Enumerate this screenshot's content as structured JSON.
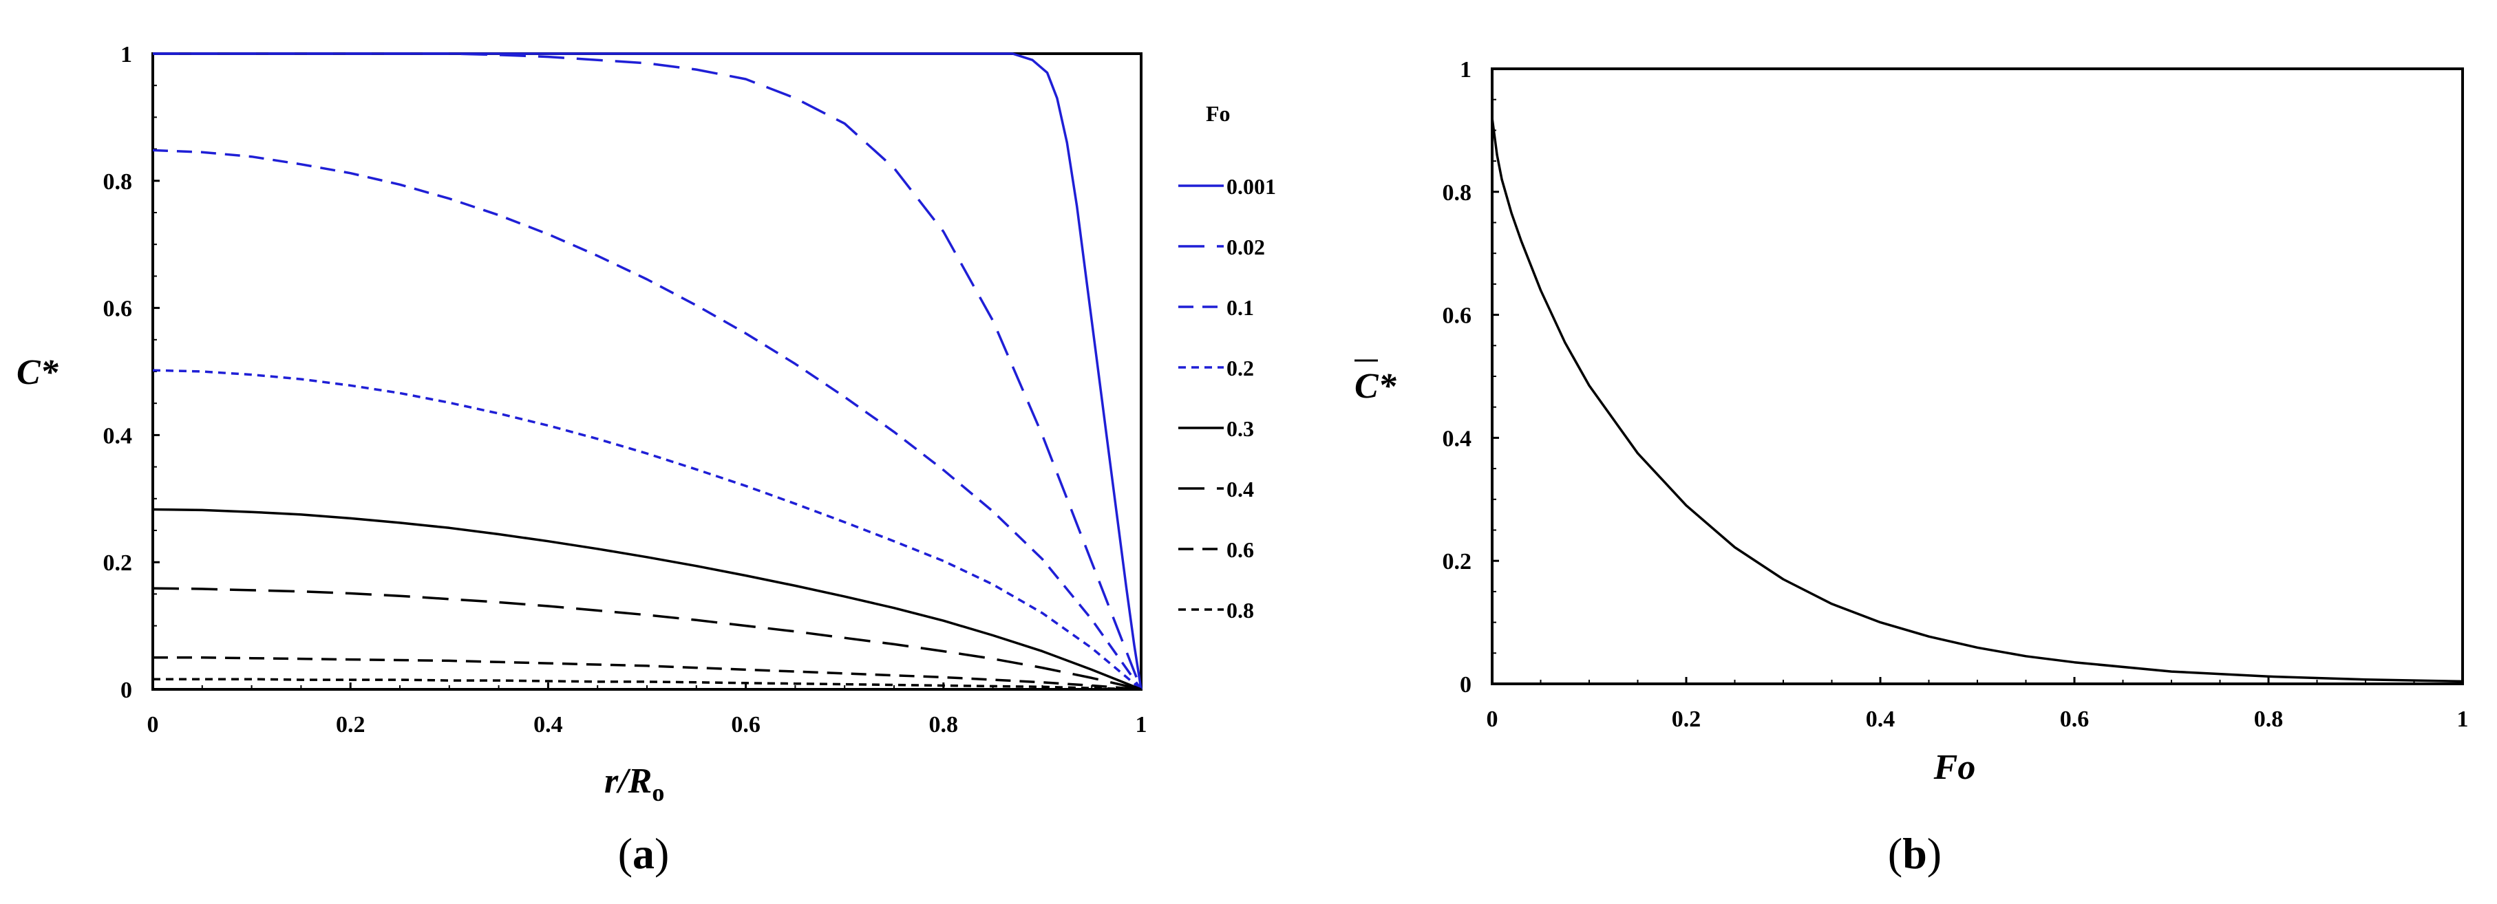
{
  "panels": {
    "a": {
      "caption_open": "(",
      "caption_letter": "a",
      "caption_close": ")"
    },
    "b": {
      "caption_open": "(",
      "caption_letter": "b",
      "caption_close": ")"
    }
  },
  "chart_data": [
    {
      "type": "line",
      "panel": "a",
      "title": "",
      "xlabel": {
        "main": "r/R",
        "sub": "o"
      },
      "ylabel": "C*",
      "xlim": [
        0,
        1
      ],
      "ylim": [
        0,
        1
      ],
      "xticks": [
        "0",
        "0.2",
        "0.4",
        "0.6",
        "0.8",
        "1"
      ],
      "yticks": [
        "0",
        "0.2",
        "0.4",
        "0.6",
        "0.8",
        "1"
      ],
      "legend_title": "Fo",
      "legend_position": "right",
      "x": [
        0,
        0.05,
        0.1,
        0.15,
        0.2,
        0.25,
        0.3,
        0.35,
        0.4,
        0.45,
        0.5,
        0.55,
        0.6,
        0.65,
        0.7,
        0.75,
        0.8,
        0.85,
        0.9,
        0.95,
        1.0
      ],
      "series": [
        {
          "name": "0.001",
          "color": "#1f1fd6",
          "dash": "solid",
          "x": [
            0,
            0.2,
            0.4,
            0.6,
            0.8,
            0.85,
            0.87,
            0.89,
            0.905,
            0.915,
            0.925,
            0.935,
            0.945,
            0.955,
            0.965,
            0.975,
            0.985,
            0.993,
            1.0
          ],
          "values": [
            1,
            1,
            1,
            1,
            1,
            1,
            1,
            0.99,
            0.97,
            0.93,
            0.86,
            0.76,
            0.64,
            0.52,
            0.4,
            0.28,
            0.16,
            0.07,
            0
          ]
        },
        {
          "name": "0.02",
          "color": "#1f1fd6",
          "dash": "long-dash",
          "values": [
            1,
            1,
            1,
            1,
            1,
            1,
            1,
            0.998,
            0.995,
            0.99,
            0.985,
            0.975,
            0.96,
            0.93,
            0.89,
            0.82,
            0.72,
            0.58,
            0.4,
            0.2,
            0
          ]
        },
        {
          "name": "0.1",
          "color": "#1f1fd6",
          "dash": "dash",
          "values": [
            0.848,
            0.845,
            0.838,
            0.826,
            0.812,
            0.794,
            0.772,
            0.746,
            0.716,
            0.682,
            0.645,
            0.604,
            0.56,
            0.512,
            0.46,
            0.405,
            0.345,
            0.28,
            0.205,
            0.11,
            0
          ]
        },
        {
          "name": "0.2",
          "color": "#1f1fd6",
          "dash": "short-dash",
          "values": [
            0.502,
            0.5,
            0.495,
            0.488,
            0.478,
            0.466,
            0.451,
            0.434,
            0.415,
            0.394,
            0.371,
            0.346,
            0.32,
            0.292,
            0.263,
            0.233,
            0.202,
            0.165,
            0.12,
            0.065,
            0
          ]
        },
        {
          "name": "0.3",
          "color": "#000000",
          "dash": "solid",
          "values": [
            0.283,
            0.282,
            0.279,
            0.275,
            0.269,
            0.262,
            0.254,
            0.244,
            0.233,
            0.221,
            0.208,
            0.194,
            0.179,
            0.163,
            0.146,
            0.128,
            0.108,
            0.085,
            0.06,
            0.031,
            0
          ]
        },
        {
          "name": "0.4",
          "color": "#000000",
          "dash": "long-dash",
          "values": [
            0.159,
            0.158,
            0.156,
            0.154,
            0.151,
            0.147,
            0.142,
            0.137,
            0.131,
            0.124,
            0.117,
            0.109,
            0.1,
            0.091,
            0.081,
            0.071,
            0.06,
            0.048,
            0.034,
            0.018,
            0
          ]
        },
        {
          "name": "0.6",
          "color": "#000000",
          "dash": "dash",
          "values": [
            0.05,
            0.05,
            0.049,
            0.048,
            0.047,
            0.046,
            0.045,
            0.043,
            0.041,
            0.039,
            0.037,
            0.034,
            0.031,
            0.028,
            0.025,
            0.022,
            0.019,
            0.015,
            0.011,
            0.006,
            0
          ]
        },
        {
          "name": "0.8",
          "color": "#000000",
          "dash": "short-dash",
          "values": [
            0.016,
            0.016,
            0.016,
            0.015,
            0.015,
            0.015,
            0.014,
            0.014,
            0.013,
            0.012,
            0.012,
            0.011,
            0.01,
            0.009,
            0.008,
            0.007,
            0.006,
            0.005,
            0.004,
            0.002,
            0
          ]
        }
      ]
    },
    {
      "type": "line",
      "panel": "b",
      "title": "",
      "xlabel": "Fo",
      "ylabel": "C*",
      "ylabel_overbar": true,
      "xlim": [
        0,
        1
      ],
      "ylim": [
        0,
        1
      ],
      "xticks": [
        "0",
        "0.2",
        "0.4",
        "0.6",
        "0.8",
        "1"
      ],
      "yticks": [
        "0",
        "0.2",
        "0.4",
        "0.6",
        "0.8",
        "1"
      ],
      "series": [
        {
          "name": "",
          "color": "#000000",
          "dash": "solid",
          "x": [
            0,
            0.005,
            0.01,
            0.02,
            0.03,
            0.05,
            0.075,
            0.1,
            0.15,
            0.2,
            0.25,
            0.3,
            0.35,
            0.4,
            0.45,
            0.5,
            0.55,
            0.6,
            0.7,
            0.8,
            0.9,
            1.0
          ],
          "values": [
            0.92,
            0.86,
            0.82,
            0.765,
            0.72,
            0.64,
            0.555,
            0.485,
            0.375,
            0.29,
            0.222,
            0.17,
            0.13,
            0.1,
            0.077,
            0.059,
            0.045,
            0.035,
            0.02,
            0.012,
            0.007,
            0.004
          ]
        }
      ]
    }
  ]
}
